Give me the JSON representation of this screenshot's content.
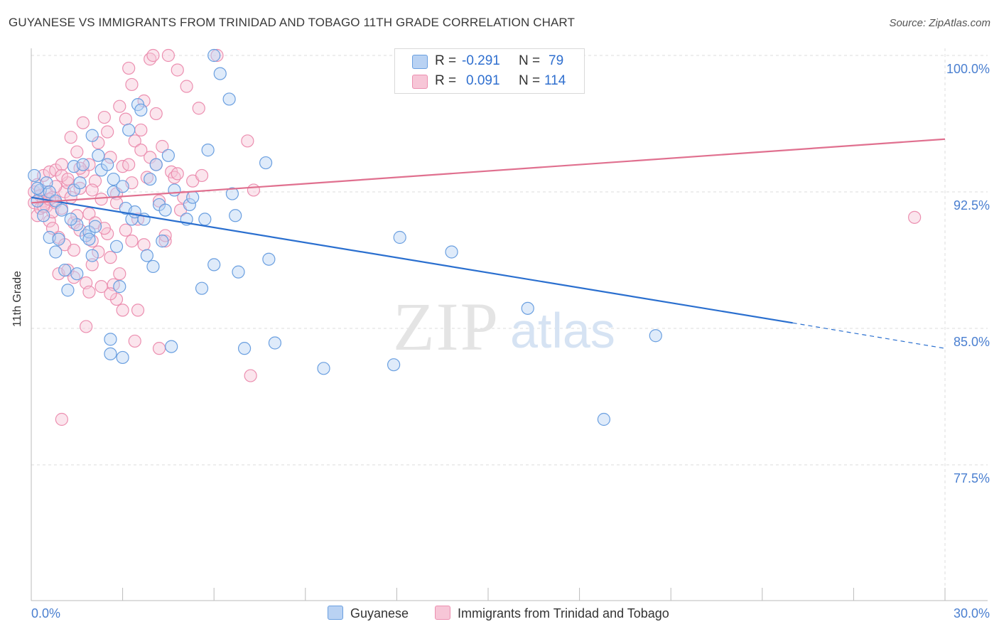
{
  "title": "GUYANESE VS IMMIGRANTS FROM TRINIDAD AND TOBAGO 11TH GRADE CORRELATION CHART",
  "source": "Source: ZipAtlas.com",
  "watermark": {
    "zip": "ZIP",
    "atlas": "atlas"
  },
  "legend_top": {
    "rows": [
      {
        "r_label": "R =",
        "r_value": "-0.291",
        "n_label": "N =",
        "n_value": "79"
      },
      {
        "r_label": "R =",
        "r_value": "0.091",
        "n_label": "N =",
        "n_value": "114"
      }
    ]
  },
  "legend_bottom": {
    "series1": "Guyanese",
    "series2": "Immigrants from Trinidad and Tobago"
  },
  "colors": {
    "blue": "#6a9fe0",
    "blue_fill": "#b9d2f3",
    "blue_line": "#2a6fcf",
    "pink": "#ec8fb0",
    "pink_fill": "#f7c6d7",
    "pink_line": "#e0708f",
    "axis_text": "#4a7fd0",
    "grid": "#dcdcdc"
  },
  "chart_data": {
    "type": "scatter",
    "title": "GUYANESE VS IMMIGRANTS FROM TRINIDAD AND TOBAGO 11TH GRADE CORRELATION CHART",
    "xlabel": "",
    "ylabel": "11th Grade",
    "xlim": [
      0.0,
      30.0
    ],
    "ylim": [
      70.0,
      100.9
    ],
    "x_tick_labels": [
      "0.0%",
      "30.0%"
    ],
    "y_tick_labels": [
      "100.0%",
      "92.5%",
      "85.0%",
      "77.5%"
    ],
    "y_ticks": [
      100.0,
      92.5,
      85.0,
      77.5
    ],
    "grid": true,
    "legend_position": "bottom",
    "series": [
      {
        "name": "Guyanese",
        "color": "#6a9fe0",
        "trend": {
          "x": [
            0.0,
            25.0
          ],
          "y": [
            92.2,
            85.3
          ],
          "dashed_to": [
            30.0,
            83.9
          ]
        },
        "points": [
          [
            0.1,
            93.4
          ],
          [
            0.2,
            92.0
          ],
          [
            0.3,
            92.6
          ],
          [
            0.4,
            91.2
          ],
          [
            0.5,
            93.0
          ],
          [
            0.6,
            92.5
          ],
          [
            0.8,
            92.0
          ],
          [
            1.0,
            91.5
          ],
          [
            0.6,
            90.0
          ],
          [
            0.9,
            89.9
          ],
          [
            0.8,
            89.2
          ],
          [
            1.1,
            88.2
          ],
          [
            1.2,
            87.1
          ],
          [
            1.4,
            93.9
          ],
          [
            1.4,
            92.6
          ],
          [
            1.5,
            90.7
          ],
          [
            1.5,
            88.0
          ],
          [
            1.6,
            93.0
          ],
          [
            1.7,
            94.0
          ],
          [
            1.8,
            90.1
          ],
          [
            1.9,
            90.3
          ],
          [
            1.9,
            89.9
          ],
          [
            2.0,
            89.0
          ],
          [
            2.0,
            95.6
          ],
          [
            2.1,
            90.6
          ],
          [
            2.2,
            94.5
          ],
          [
            2.3,
            93.7
          ],
          [
            2.5,
            94.0
          ],
          [
            2.6,
            84.4
          ],
          [
            2.6,
            83.6
          ],
          [
            2.7,
            93.2
          ],
          [
            2.7,
            92.5
          ],
          [
            2.8,
            89.5
          ],
          [
            2.9,
            87.3
          ],
          [
            3.0,
            83.4
          ],
          [
            3.0,
            92.8
          ],
          [
            3.1,
            91.6
          ],
          [
            3.2,
            95.9
          ],
          [
            3.3,
            91.0
          ],
          [
            3.4,
            91.4
          ],
          [
            3.5,
            97.3
          ],
          [
            3.6,
            97.0
          ],
          [
            3.7,
            91.0
          ],
          [
            3.8,
            89.0
          ],
          [
            3.9,
            93.2
          ],
          [
            4.0,
            88.4
          ],
          [
            4.1,
            94.0
          ],
          [
            4.2,
            91.8
          ],
          [
            4.3,
            89.8
          ],
          [
            4.4,
            91.5
          ],
          [
            4.5,
            94.5
          ],
          [
            4.6,
            84.0
          ],
          [
            4.7,
            92.6
          ],
          [
            5.1,
            91.0
          ],
          [
            5.2,
            91.8
          ],
          [
            5.3,
            92.2
          ],
          [
            5.6,
            87.2
          ],
          [
            5.7,
            91.0
          ],
          [
            5.8,
            94.8
          ],
          [
            6.0,
            88.5
          ],
          [
            6.0,
            100.0
          ],
          [
            6.2,
            99.0
          ],
          [
            6.5,
            97.6
          ],
          [
            6.6,
            92.4
          ],
          [
            6.7,
            91.2
          ],
          [
            6.8,
            88.1
          ],
          [
            7.0,
            83.9
          ],
          [
            7.7,
            94.1
          ],
          [
            7.8,
            88.8
          ],
          [
            8.0,
            84.2
          ],
          [
            9.6,
            82.8
          ],
          [
            11.9,
            83.0
          ],
          [
            12.1,
            90.0
          ],
          [
            13.8,
            89.2
          ],
          [
            16.3,
            86.1
          ],
          [
            18.8,
            80.0
          ],
          [
            20.5,
            84.6
          ],
          [
            0.2,
            92.7
          ],
          [
            1.3,
            91.0
          ]
        ]
      },
      {
        "name": "Immigrants from Trinidad and Tobago",
        "color": "#ec8fb0",
        "trend": {
          "x": [
            0.0,
            30.0
          ],
          "y": [
            91.9,
            95.4
          ]
        },
        "points": [
          [
            0.1,
            91.9
          ],
          [
            0.1,
            92.5
          ],
          [
            0.2,
            91.2
          ],
          [
            0.2,
            92.9
          ],
          [
            0.3,
            92.3
          ],
          [
            0.3,
            91.6
          ],
          [
            0.4,
            93.4
          ],
          [
            0.4,
            92.0
          ],
          [
            0.5,
            91.7
          ],
          [
            0.5,
            92.5
          ],
          [
            0.6,
            90.9
          ],
          [
            0.6,
            93.6
          ],
          [
            0.7,
            92.2
          ],
          [
            0.7,
            91.4
          ],
          [
            0.8,
            93.7
          ],
          [
            0.8,
            91.9
          ],
          [
            0.9,
            90.0
          ],
          [
            0.9,
            88.0
          ],
          [
            1.0,
            94.0
          ],
          [
            1.0,
            91.6
          ],
          [
            1.1,
            92.5
          ],
          [
            1.1,
            89.6
          ],
          [
            1.2,
            93.0
          ],
          [
            1.2,
            88.2
          ],
          [
            1.3,
            95.5
          ],
          [
            1.3,
            92.2
          ],
          [
            1.4,
            89.3
          ],
          [
            1.4,
            90.8
          ],
          [
            1.5,
            91.2
          ],
          [
            1.5,
            94.7
          ],
          [
            1.6,
            92.7
          ],
          [
            1.6,
            90.4
          ],
          [
            1.7,
            93.6
          ],
          [
            1.7,
            96.3
          ],
          [
            1.8,
            87.5
          ],
          [
            1.8,
            85.1
          ],
          [
            1.9,
            94.0
          ],
          [
            1.9,
            91.3
          ],
          [
            2.0,
            89.8
          ],
          [
            2.0,
            88.5
          ],
          [
            2.1,
            93.1
          ],
          [
            2.1,
            90.8
          ],
          [
            2.2,
            95.2
          ],
          [
            2.2,
            89.2
          ],
          [
            2.3,
            92.1
          ],
          [
            2.3,
            87.3
          ],
          [
            2.4,
            96.6
          ],
          [
            2.5,
            95.8
          ],
          [
            2.5,
            90.2
          ],
          [
            2.6,
            94.4
          ],
          [
            2.6,
            88.9
          ],
          [
            2.7,
            87.4
          ],
          [
            2.8,
            92.4
          ],
          [
            2.8,
            86.6
          ],
          [
            2.9,
            97.2
          ],
          [
            2.9,
            88.0
          ],
          [
            3.0,
            93.9
          ],
          [
            3.1,
            96.5
          ],
          [
            3.1,
            90.4
          ],
          [
            3.2,
            94.0
          ],
          [
            3.3,
            98.4
          ],
          [
            3.3,
            89.8
          ],
          [
            3.4,
            95.3
          ],
          [
            3.4,
            84.3
          ],
          [
            3.5,
            91.0
          ],
          [
            3.5,
            86.0
          ],
          [
            3.6,
            95.9
          ],
          [
            3.7,
            97.5
          ],
          [
            3.7,
            89.6
          ],
          [
            3.8,
            93.3
          ],
          [
            3.9,
            99.8
          ],
          [
            3.9,
            94.4
          ],
          [
            4.0,
            100.0
          ],
          [
            4.1,
            96.8
          ],
          [
            4.1,
            94.0
          ],
          [
            4.2,
            83.9
          ],
          [
            4.2,
            92.0
          ],
          [
            4.3,
            95.0
          ],
          [
            4.4,
            89.8
          ],
          [
            4.5,
            100.0
          ],
          [
            4.6,
            93.6
          ],
          [
            4.7,
            93.3
          ],
          [
            4.8,
            99.2
          ],
          [
            5.0,
            92.2
          ],
          [
            5.1,
            98.3
          ],
          [
            5.3,
            93.1
          ],
          [
            5.5,
            97.1
          ],
          [
            6.1,
            100.0
          ],
          [
            7.1,
            95.3
          ],
          [
            7.2,
            82.4
          ],
          [
            7.3,
            92.6
          ],
          [
            1.0,
            80.0
          ],
          [
            3.2,
            99.3
          ],
          [
            4.9,
            91.5
          ],
          [
            29.0,
            91.1
          ],
          [
            0.4,
            91.7
          ],
          [
            0.6,
            92.1
          ],
          [
            0.7,
            90.5
          ],
          [
            1.0,
            93.4
          ],
          [
            1.4,
            87.8
          ],
          [
            1.9,
            87.0
          ],
          [
            2.6,
            86.9
          ],
          [
            3.0,
            86.0
          ],
          [
            3.6,
            94.8
          ],
          [
            4.4,
            90.1
          ],
          [
            4.8,
            93.5
          ],
          [
            1.6,
            93.8
          ],
          [
            2.0,
            92.6
          ],
          [
            2.4,
            90.5
          ],
          [
            0.8,
            92.8
          ],
          [
            1.2,
            93.2
          ],
          [
            2.8,
            91.9
          ],
          [
            3.3,
            93.0
          ],
          [
            5.6,
            93.4
          ]
        ]
      }
    ]
  }
}
